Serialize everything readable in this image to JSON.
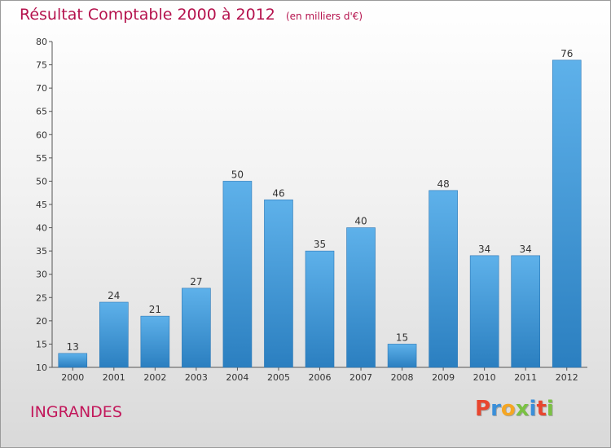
{
  "header": {
    "title": "Résultat Comptable 2000 à 2012",
    "subtitle": "(en milliers d'€)"
  },
  "footer": {
    "commune": "INGRANDES",
    "logo_text": "Proxiti"
  },
  "colors": {
    "title": "#b5124d",
    "bar_light": "#5eb1ea",
    "bar_dark": "#2b7fc0",
    "logo_letters": [
      "#e8462f",
      "#3a8fd9",
      "#f5a623",
      "#7ac143",
      "#3a8fd9",
      "#e8462f",
      "#7ac143"
    ]
  },
  "chart_data": {
    "type": "bar",
    "categories": [
      "2000",
      "2001",
      "2002",
      "2003",
      "2004",
      "2005",
      "2006",
      "2007",
      "2008",
      "2009",
      "2010",
      "2011",
      "2012"
    ],
    "values": [
      13,
      24,
      21,
      27,
      50,
      46,
      35,
      40,
      15,
      48,
      34,
      34,
      76
    ],
    "title": "Résultat Comptable 2000 à 2012",
    "xlabel": "",
    "ylabel": "",
    "ylim": [
      10,
      80
    ],
    "yticks": [
      10,
      15,
      20,
      25,
      30,
      35,
      40,
      45,
      50,
      55,
      60,
      65,
      70,
      75,
      80
    ],
    "grid": false,
    "legend": "none",
    "data_labels": true
  }
}
